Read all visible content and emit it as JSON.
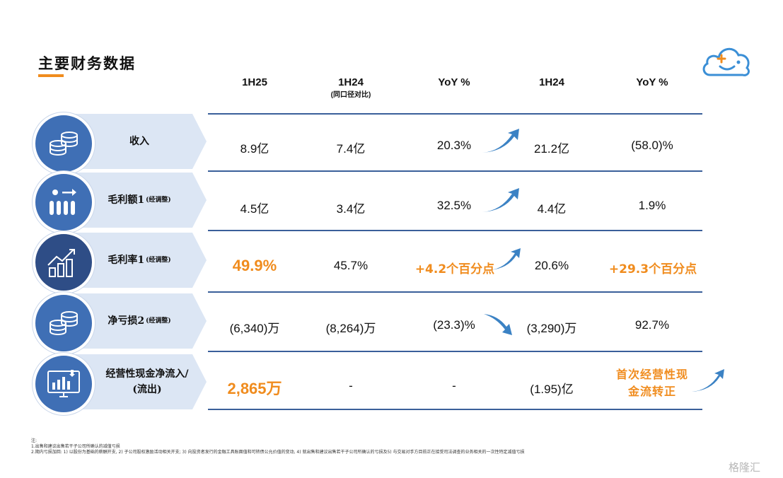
{
  "title": "主要财务数据",
  "headers": {
    "c1": "1H25",
    "c2": "1H24",
    "c2_sub": "(同口径对比)",
    "c3": "YoY %",
    "c4": "1H24",
    "c5": "YoY %"
  },
  "rows": [
    {
      "label": "收入",
      "note": "",
      "c1": "8.9亿",
      "c2": "7.4亿",
      "c3": "20.3%",
      "c4": "21.2亿",
      "c5": "(58.0)%",
      "icon": "coins-icon"
    },
    {
      "label": "毛利额1",
      "note": "(经调整)",
      "c1": "4.5亿",
      "c2": "3.4亿",
      "c3": "32.5%",
      "c4": "4.4亿",
      "c5": "1.9%",
      "icon": "bars-arrow-icon"
    },
    {
      "label": "毛利率1",
      "note": "(经调整)",
      "c1": "49.9%",
      "c2": "45.7%",
      "c3": "+4.2个百分点",
      "c4": "20.6%",
      "c5": "+29.3个百分点",
      "icon": "growth-chart-icon"
    },
    {
      "label": "净亏损2",
      "note": "(经调整)",
      "c1": "(6,340)万",
      "c2": "(8,264)万",
      "c3": "(23.3)%",
      "c4": "(3,290)万",
      "c5": "92.7%",
      "icon": "coins-icon"
    },
    {
      "label": "经营性现金净流入/",
      "label2": "(流出)",
      "c1": "2,865万",
      "c2": "-",
      "c3": "-",
      "c4": "(1.95)亿",
      "c5_line1": "首次经营性现",
      "c5_line2": "金流转正",
      "icon": "monitor-chart-icon"
    }
  ],
  "notes": {
    "line0": "注:",
    "line1": "1.出售和建议出售若干子公司所确认的减值亏损",
    "line2": "2.期内亏损加回: 1) 以股份为基础的薪酬开支, 2) 子公司股权激励活动相关开支; 3) 向投资者发行的金融工具账面值和可转债公允价值的变动, 4) 就出售和建议出售若干子公司所确认的亏损及5) 与交易对手方目前正在接受司法调查的业务相关的一次性特定减值亏损"
  },
  "watermark": "格隆汇",
  "colors": {
    "accent": "#f08c1e",
    "band": "#dce6f4",
    "circle": "#3f6fb5",
    "circle_dark": "#2e4d86",
    "rule": "#3a5f9a",
    "arrow": "#3b82c4"
  }
}
